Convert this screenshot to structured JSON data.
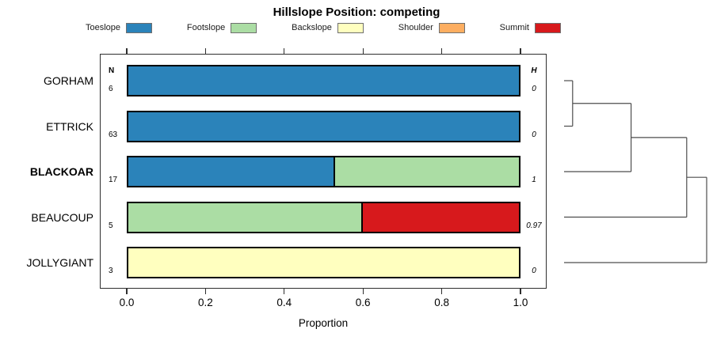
{
  "chart_data": {
    "type": "bar",
    "variant": "horizontal-stacked-proportion",
    "title": "Hillslope Position: competing",
    "xlabel": "Proportion",
    "xlim": [
      0,
      1
    ],
    "xtick_labels": [
      "0.0",
      "0.2",
      "0.4",
      "0.6",
      "0.8",
      "1.0"
    ],
    "grid": false,
    "legend_position": "top",
    "categories": [
      "Toeslope",
      "Footslope",
      "Backslope",
      "Shoulder",
      "Summit"
    ],
    "colors": {
      "Toeslope": "#2B83BA",
      "Footslope": "#ABDDA4",
      "Backslope": "#FFFFBF",
      "Shoulder": "#FDAE61",
      "Summit": "#D7191C"
    },
    "columns": {
      "n_header": "N",
      "h_header": "H"
    },
    "rows": [
      {
        "label": "GORHAM",
        "bold": false,
        "n": "6",
        "h": "0",
        "segments": [
          {
            "category": "Toeslope",
            "value": 1.0
          }
        ]
      },
      {
        "label": "ETTRICK",
        "bold": false,
        "n": "63",
        "h": "0",
        "segments": [
          {
            "category": "Toeslope",
            "value": 1.0
          }
        ]
      },
      {
        "label": "BLACKOAR",
        "bold": true,
        "n": "17",
        "h": "1",
        "segments": [
          {
            "category": "Toeslope",
            "value": 0.53
          },
          {
            "category": "Footslope",
            "value": 0.47
          }
        ]
      },
      {
        "label": "BEAUCOUP",
        "bold": false,
        "n": "5",
        "h": "0.97",
        "segments": [
          {
            "category": "Footslope",
            "value": 0.6
          },
          {
            "category": "Summit",
            "value": 0.4
          }
        ]
      },
      {
        "label": "JOLLYGIANT",
        "bold": false,
        "n": "3",
        "h": "0",
        "segments": [
          {
            "category": "Backslope",
            "value": 1.0
          }
        ]
      }
    ],
    "dendrogram": {
      "leaf_order": [
        "GORHAM",
        "ETTRICK",
        "BLACKOAR",
        "BEAUCOUP",
        "JOLLYGIANT"
      ],
      "merges": [
        {
          "a": "GORHAM",
          "b": "ETTRICK",
          "height": 0.06
        },
        {
          "a": "merge1",
          "b": "BLACKOAR",
          "height": 0.47
        },
        {
          "a": "merge2",
          "b": "BEAUCOUP",
          "height": 0.86
        },
        {
          "a": "merge3",
          "b": "JOLLYGIANT",
          "height": 1.0
        }
      ]
    }
  }
}
